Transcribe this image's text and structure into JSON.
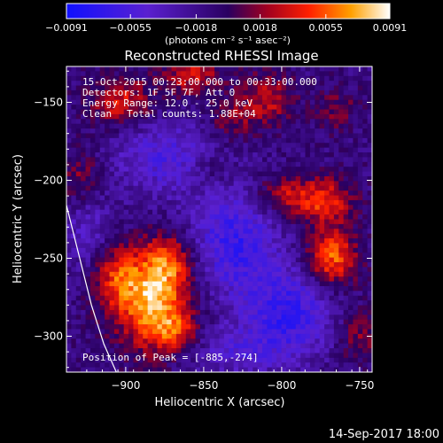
{
  "chart_data": {
    "type": "heatmap",
    "title": "Reconstructed RHESSI Image",
    "xlabel": "Heliocentric X (arcsec)",
    "ylabel": "Heliocentric Y (arcsec)",
    "xlim": [
      -938,
      -742
    ],
    "ylim": [
      -323,
      -127
    ],
    "xticks": [
      -900,
      -850,
      -800,
      -750
    ],
    "yticks": [
      -150,
      -200,
      -250,
      -300
    ],
    "xtick_labels": [
      "−900",
      "−850",
      "−800",
      "−750"
    ],
    "ytick_labels": [
      "−150",
      "−200",
      "−250",
      "−300"
    ],
    "colorbar": {
      "min": -0.0091,
      "max": 0.0091,
      "ticks": [
        -0.0091,
        -0.0055,
        -0.0018,
        0.0018,
        0.0055,
        0.0091
      ],
      "tick_labels": [
        "−0.0091",
        "−0.0055",
        "−0.0018",
        "0.0018",
        "0.0055",
        "0.0091"
      ],
      "unit_label": "(photons cm⁻² s⁻¹ asec⁻²)"
    },
    "annotations": {
      "time_range": "15-Oct-2015 00:23:00.000 to 00:33:00.000",
      "detectors": "Detectors: 1F 5F 7F, Att 0",
      "energy_range": "Energy Range: 12.0 - 25.0 keV",
      "clean_label": "Clean",
      "total_counts": "Total counts: 1.88E+04",
      "peak_position": "Position of Peak = [-885,-274]"
    },
    "sources": [
      {
        "x": -883,
        "y": -277,
        "intensity": 0.0085,
        "sx": 16,
        "sy": 21
      },
      {
        "x": -907,
        "y": -262,
        "intensity": 0.0045,
        "sx": 11,
        "sy": 14
      },
      {
        "x": -872,
        "y": -252,
        "intensity": 0.0045,
        "sx": 11,
        "sy": 12
      },
      {
        "x": -868,
        "y": -297,
        "intensity": 0.004,
        "sx": 10,
        "sy": 9
      },
      {
        "x": -768,
        "y": -250,
        "intensity": 0.007,
        "sx": 11,
        "sy": 13
      },
      {
        "x": -773,
        "y": -213,
        "intensity": 0.0055,
        "sx": 13,
        "sy": 10
      },
      {
        "x": -800,
        "y": -210,
        "intensity": 0.004,
        "sx": 12,
        "sy": 9
      },
      {
        "x": -903,
        "y": -150,
        "intensity": 0.005,
        "sx": 14,
        "sy": 11
      },
      {
        "x": -858,
        "y": -133,
        "intensity": 0.0045,
        "sx": 13,
        "sy": 9
      },
      {
        "x": -810,
        "y": -148,
        "intensity": 0.004,
        "sx": 12,
        "sy": 12
      },
      {
        "x": -833,
        "y": -162,
        "intensity": 0.003,
        "sx": 10,
        "sy": 9
      },
      {
        "x": -765,
        "y": -155,
        "intensity": 0.0025,
        "sx": 10,
        "sy": 9
      },
      {
        "x": -928,
        "y": -200,
        "intensity": 0.0035,
        "sx": 11,
        "sy": 14
      },
      {
        "x": -845,
        "y": -193,
        "intensity": 0.002,
        "sx": 10,
        "sy": 9
      },
      {
        "x": -750,
        "y": -300,
        "intensity": 0.003,
        "sx": 9,
        "sy": 12
      },
      {
        "x": -830,
        "y": -240,
        "intensity": -0.0055,
        "sx": 20,
        "sy": 24
      },
      {
        "x": -795,
        "y": -285,
        "intensity": -0.0055,
        "sx": 20,
        "sy": 20
      },
      {
        "x": -875,
        "y": -185,
        "intensity": -0.004,
        "sx": 25,
        "sy": 18
      },
      {
        "x": -925,
        "y": -230,
        "intensity": -0.003,
        "sx": 12,
        "sy": 22
      },
      {
        "x": -830,
        "y": -310,
        "intensity": -0.003,
        "sx": 22,
        "sy": 12
      }
    ],
    "limb_curve": [
      [
        -938,
        -216
      ],
      [
        -930,
        -248
      ],
      [
        -922,
        -280
      ],
      [
        -914,
        -305
      ],
      [
        -906,
        -323
      ]
    ]
  },
  "footer_date": "14-Sep-2017 18:00"
}
